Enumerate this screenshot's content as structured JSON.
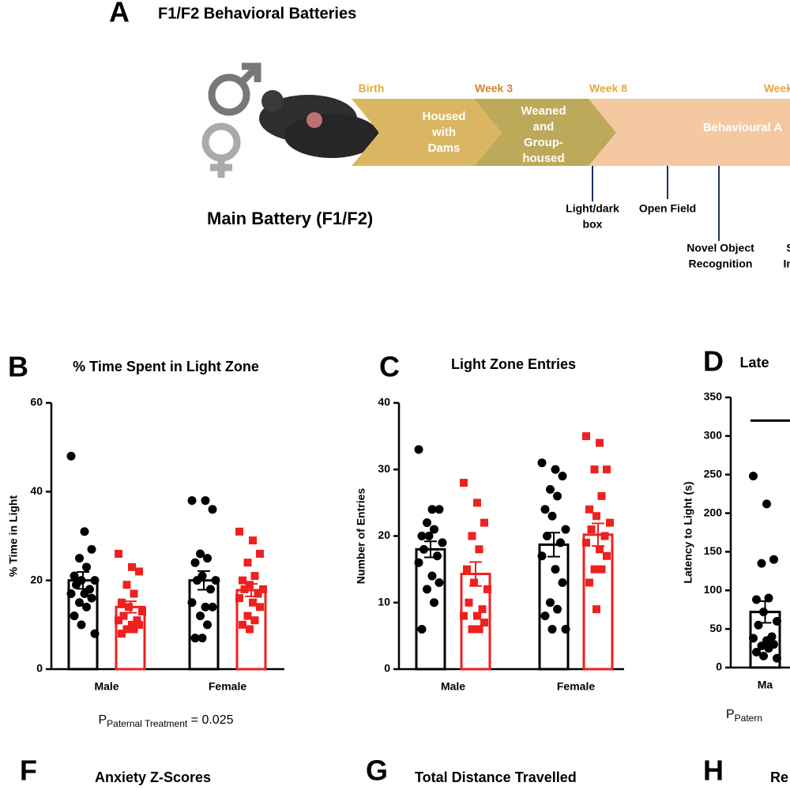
{
  "panel_a": {
    "label": "A",
    "title": "F1/F2 Behavioral Batteries",
    "battery": "Main Battery (F1/F2)",
    "stages": [
      "Birth",
      "Week 3",
      "Week 8",
      "Week"
    ],
    "boxes": [
      [
        "Housed",
        "with",
        "Dams"
      ],
      [
        "Weaned",
        "and",
        "Group-",
        "housed"
      ],
      [
        "Behavioural A"
      ]
    ],
    "tests": [
      [
        "Light/dark",
        "box"
      ],
      [
        "Open Field"
      ],
      [
        "Novel Object",
        "Recognition"
      ],
      [
        "S",
        "Int"
      ]
    ]
  },
  "chart_data": [
    {
      "type": "bar",
      "label": "B",
      "title": "% Time Spent  in Light Zone",
      "ylabel": "% Time in Light",
      "categories": [
        "Male",
        "Female"
      ],
      "ylim": [
        0,
        60
      ],
      "yticks": [
        0,
        20,
        40,
        60
      ],
      "annotation": {
        "p": "P",
        "sub": "Paternal Treatment",
        "rest": " = 0.025"
      },
      "series": [
        {
          "color": "#000000",
          "marker": "circle",
          "values": [
            20,
            20
          ],
          "errors": [
            1.9,
            2.1
          ],
          "points": [
            [
              48,
              31,
              27,
              25,
              23,
              21,
              20,
              20,
              19,
              18,
              17,
              17,
              16,
              15,
              14,
              12,
              10,
              8
            ],
            [
              38,
              38,
              36,
              26,
              25,
              24,
              21,
              20,
              20,
              18,
              15,
              14,
              14,
              12,
              10,
              7,
              7
            ]
          ]
        },
        {
          "color": "#ee2020",
          "marker": "square",
          "values": [
            14,
            17.8
          ],
          "errors": [
            1.3,
            1.4
          ],
          "points": [
            [
              26,
              23,
              22,
              19,
              17,
              15,
              14,
              13,
              12,
              11,
              11,
              10,
              10,
              9,
              9,
              8
            ],
            [
              31,
              29,
              26,
              24,
              21,
              20,
              19,
              18,
              18,
              17,
              16,
              15,
              14,
              12,
              11,
              10,
              9
            ]
          ]
        }
      ]
    },
    {
      "type": "bar",
      "label": "C",
      "title": "Light Zone Entries",
      "ylabel": "Number of Entries",
      "categories": [
        "Male",
        "Female"
      ],
      "ylim": [
        0,
        40
      ],
      "yticks": [
        0,
        10,
        20,
        30,
        40
      ],
      "series": [
        {
          "color": "#000000",
          "marker": "circle",
          "values": [
            18,
            18.7
          ],
          "errors": [
            1.2,
            1.8
          ],
          "points": [
            [
              33,
              24,
              24,
              22,
              21,
              20,
              20,
              19,
              18,
              17,
              16,
              14,
              13,
              12,
              10,
              6
            ],
            [
              31,
              30,
              29,
              27,
              26,
              24,
              23,
              21,
              20,
              19,
              17,
              15,
              13,
              10,
              9,
              8,
              6,
              6
            ]
          ]
        },
        {
          "color": "#ee2020",
          "marker": "square",
          "values": [
            14.3,
            20.2
          ],
          "errors": [
            1.8,
            1.7
          ],
          "points": [
            [
              28,
              25,
              22,
              20,
              18,
              15,
              13,
              12,
              10,
              9,
              8,
              8,
              7,
              6,
              6
            ],
            [
              35,
              34,
              30,
              30,
              26,
              24,
              23,
              22,
              21,
              20,
              19,
              18,
              17,
              15,
              15,
              13,
              9
            ]
          ]
        }
      ]
    },
    {
      "type": "bar",
      "label": "D",
      "title": "Late",
      "ylabel": "Latency to Light (s)",
      "categories": [
        "Ma"
      ],
      "ylim": [
        0,
        350
      ],
      "yticks": [
        0,
        50,
        100,
        150,
        200,
        250,
        300,
        350
      ],
      "annotation": {
        "p": "P",
        "sub": "Patern"
      },
      "series": [
        {
          "color": "#000000",
          "marker": "circle",
          "values": [
            72
          ],
          "errors": [
            14
          ],
          "points": [
            [
              248,
              212,
              140,
              135,
              90,
              88,
              72,
              60,
              55,
              40,
              38,
              35,
              30,
              28,
              25,
              20,
              15,
              12
            ]
          ]
        }
      ]
    }
  ],
  "bottom": [
    {
      "label": "F",
      "title": "Anxiety Z-Scores"
    },
    {
      "label": "G",
      "title": "Total Distance Travelled"
    },
    {
      "label": "H",
      "title": "Re"
    }
  ]
}
